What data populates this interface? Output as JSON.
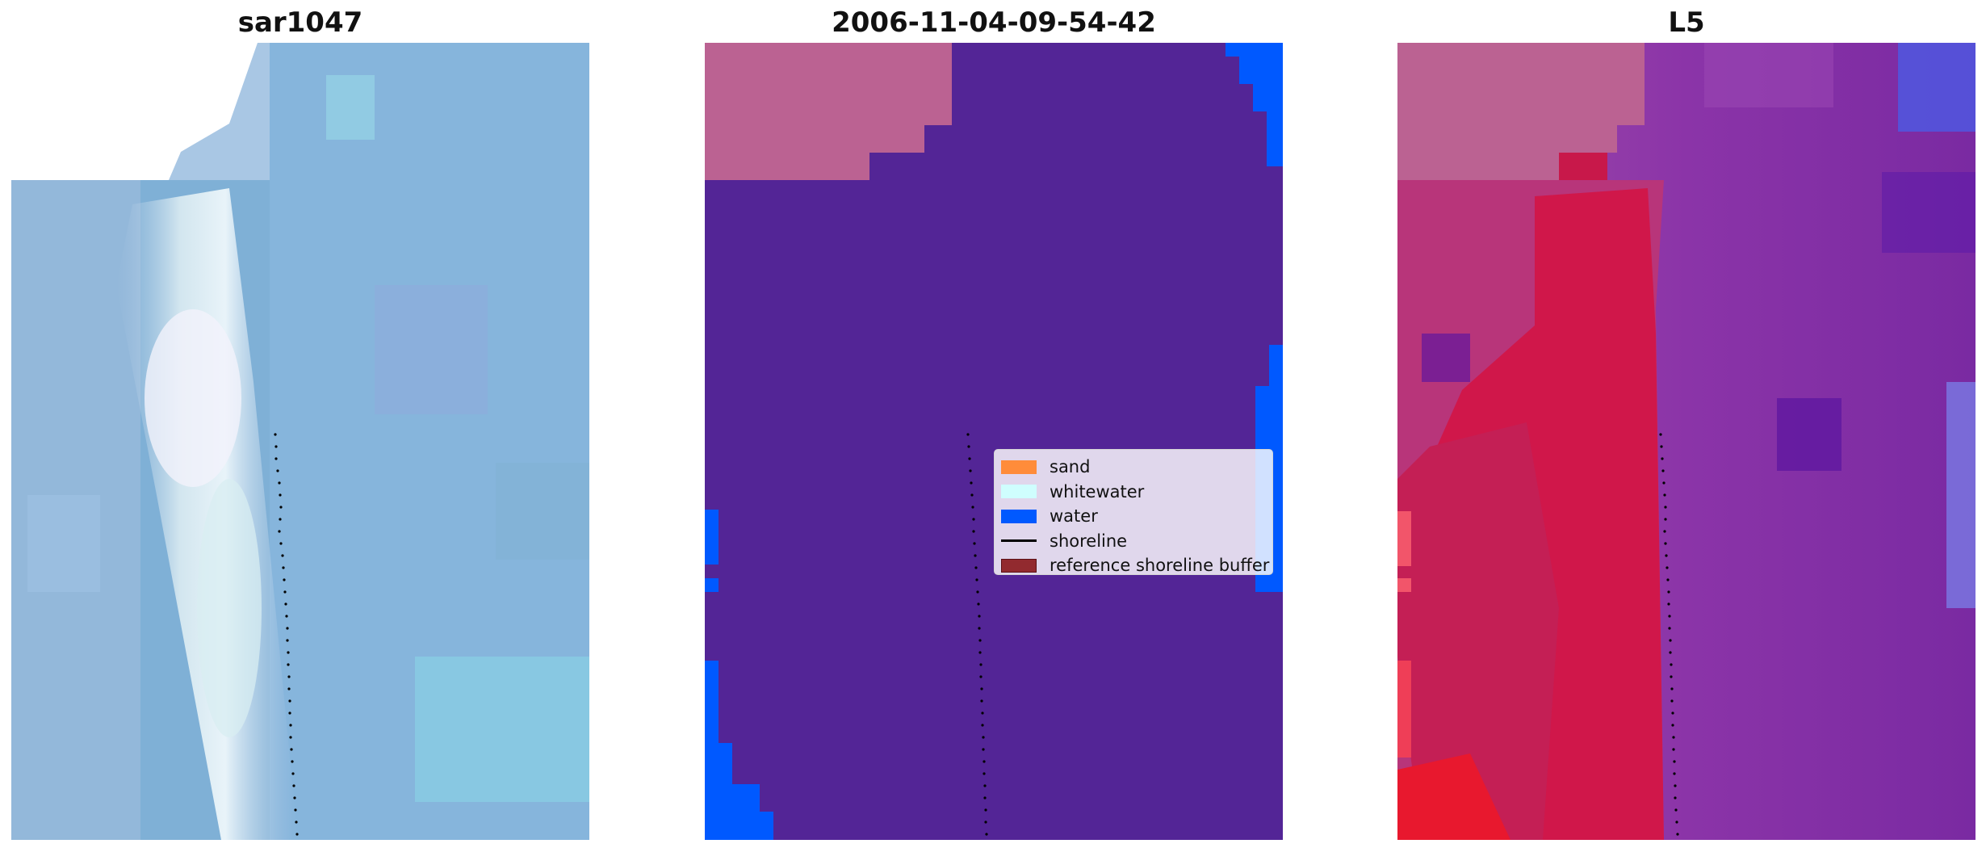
{
  "panels": [
    {
      "title": "sar1047"
    },
    {
      "title": "2006-11-04-09-54-42"
    },
    {
      "title": "L5"
    }
  ],
  "legend": {
    "items": [
      {
        "label": "sand",
        "color": "#ff8c3a",
        "kind": "patch"
      },
      {
        "label": "whitewater",
        "color": "#cffefe",
        "kind": "patch"
      },
      {
        "label": "water",
        "color": "#0059ff",
        "kind": "patch"
      },
      {
        "label": "shoreline",
        "color": "#000000",
        "kind": "line"
      },
      {
        "label": "reference shoreline buffer",
        "color": "#922a2f",
        "kind": "patch"
      }
    ]
  },
  "colors": {
    "classification_land": "#bb6292",
    "classification_other": "#532596",
    "classification_water": "#0059ff",
    "rgb_base": "#7fb0d6",
    "index_red": "#d0174a",
    "index_purple": "#8b34a8"
  }
}
